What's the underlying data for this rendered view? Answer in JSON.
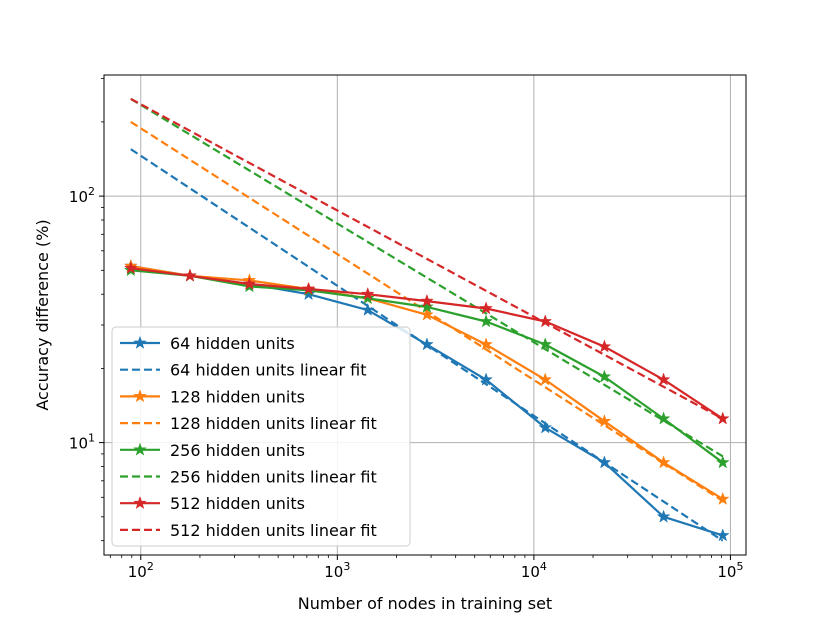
{
  "chart_data": {
    "type": "line",
    "xscale": "log",
    "yscale": "log",
    "xlabel": "Number of nodes in training set",
    "ylabel": "Accuracy difference (%)",
    "xlim": [
      65,
      120000
    ],
    "ylim": [
      3.5,
      310
    ],
    "grid": true,
    "legend_position": "lower-left",
    "x_ticks": [
      {
        "value": 100,
        "base": "10",
        "exp": "2"
      },
      {
        "value": 1000,
        "base": "10",
        "exp": "3"
      },
      {
        "value": 10000,
        "base": "10",
        "exp": "4"
      },
      {
        "value": 100000,
        "base": "10",
        "exp": "5"
      }
    ],
    "y_ticks": [
      {
        "value": 10,
        "base": "10",
        "exp": "1"
      },
      {
        "value": 100,
        "base": "10",
        "exp": "2"
      }
    ],
    "x": [
      89,
      178,
      357,
      714,
      1428,
      2856,
      5712,
      11424,
      22848,
      45696,
      91392
    ],
    "series": [
      {
        "name": "64 hidden units",
        "color": "#1f77b4",
        "values": [
          52,
          47.5,
          44,
          40,
          34.5,
          25,
          18,
          11.5,
          8.3,
          5.0,
          4.2
        ],
        "fit_name": "64 hidden units linear fit",
        "fit": [
          155,
          4.0
        ]
      },
      {
        "name": "128 hidden units",
        "color": "#ff7f0e",
        "values": [
          52,
          47.5,
          45.5,
          42,
          38.5,
          33,
          25,
          18,
          12.2,
          8.3,
          5.9
        ],
        "fit_name": "128 hidden units linear fit",
        "fit": [
          200,
          5.8
        ]
      },
      {
        "name": "256 hidden units",
        "color": "#2ca02c",
        "values": [
          50,
          47.5,
          43,
          41.5,
          38.5,
          35.5,
          31,
          25,
          18.5,
          12.5,
          8.3
        ],
        "fit_name": "256 hidden units linear fit",
        "fit": [
          248,
          8.8
        ]
      },
      {
        "name": "512 hidden units",
        "color": "#d62728",
        "values": [
          51,
          47.5,
          44,
          42,
          40,
          37.5,
          35,
          31,
          24.5,
          18,
          12.5
        ],
        "fit_name": "512 hidden units linear fit",
        "fit": [
          248,
          12.5
        ]
      }
    ]
  }
}
